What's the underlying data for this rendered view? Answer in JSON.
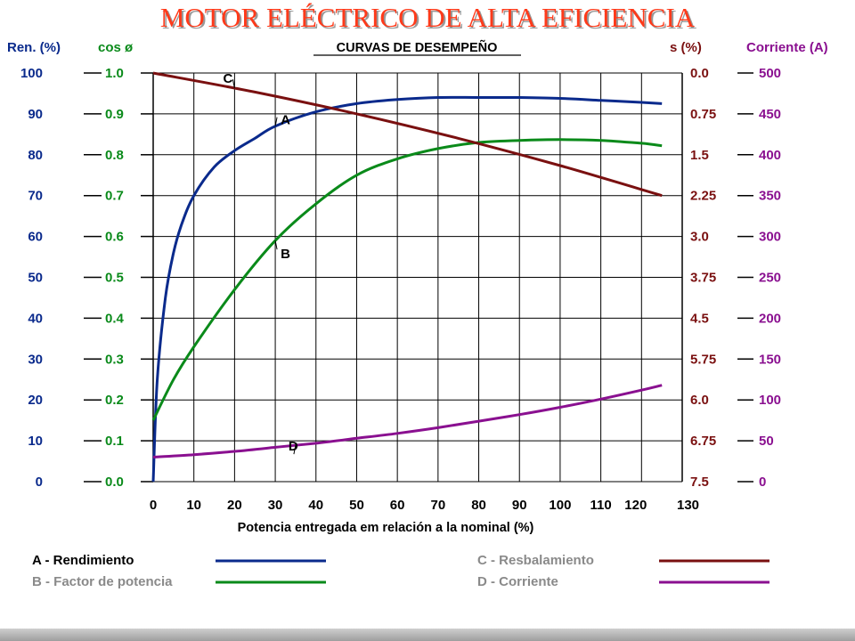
{
  "title": "MOTOR ELÉCTRICO DE ALTA EFICIENCIA",
  "chart_data": {
    "type": "line",
    "title": "CURVAS DE DESEMPEÑO",
    "xlabel": "Potencia entregada em relación a la nominal (%)",
    "xlim": [
      0,
      130
    ],
    "x_ticks": [
      "0",
      "10",
      "20",
      "30",
      "40",
      "50",
      "60",
      "70",
      "80",
      "90",
      "100",
      "110",
      "120",
      "130"
    ],
    "grid": true,
    "axes": [
      {
        "id": "ren",
        "label": "Ren. (%)",
        "color": "#0a2a8c",
        "side": "left",
        "ticks": [
          "0",
          "10",
          "20",
          "30",
          "40",
          "50",
          "60",
          "70",
          "80",
          "90",
          "100"
        ]
      },
      {
        "id": "cos",
        "label": "cos ø",
        "color": "#0a8a1a",
        "side": "left",
        "ticks": [
          "0.0",
          "0.1",
          "0.2",
          "0.3",
          "0.4",
          "0.5",
          "0.6",
          "0.7",
          "0.8",
          "0.9",
          "1.0"
        ]
      },
      {
        "id": "slip",
        "label": "s (%)",
        "color": "#7a1010",
        "side": "right",
        "ticks": [
          "7.5",
          "6.75",
          "6.0",
          "5.75",
          "4.5",
          "3.75",
          "3.0",
          "2.25",
          "1.5",
          "0.75",
          "0.0"
        ]
      },
      {
        "id": "amp",
        "label": "Corriente (A)",
        "color": "#8a1090",
        "side": "right",
        "ticks": [
          "0",
          "50",
          "100",
          "150",
          "200",
          "250",
          "300",
          "350",
          "400",
          "450",
          "500"
        ]
      }
    ],
    "series": [
      {
        "id": "A",
        "name": "A - Rendimiento",
        "letter": "A",
        "axis": "ren",
        "color": "#0a2a8c",
        "range": [
          0,
          100
        ],
        "x": [
          0,
          1,
          3,
          5,
          7,
          10,
          15,
          20,
          25,
          30,
          40,
          50,
          60,
          70,
          80,
          90,
          100,
          110,
          120,
          125
        ],
        "y": [
          0,
          25,
          45,
          56,
          63,
          70,
          77,
          81,
          84,
          87,
          90.5,
          92.5,
          93.5,
          94,
          94,
          94,
          93.8,
          93.3,
          92.8,
          92.5
        ]
      },
      {
        "id": "B",
        "name": "B - Factor de potencia",
        "letter": "B",
        "axis": "cos",
        "color": "#0a8a1a",
        "range": [
          0,
          1
        ],
        "x": [
          0,
          5,
          10,
          20,
          30,
          40,
          50,
          60,
          70,
          80,
          90,
          100,
          110,
          120,
          125
        ],
        "y": [
          0.15,
          0.25,
          0.33,
          0.47,
          0.59,
          0.68,
          0.75,
          0.79,
          0.815,
          0.83,
          0.835,
          0.837,
          0.835,
          0.828,
          0.822
        ]
      },
      {
        "id": "C",
        "name": "C - Resbalamiento",
        "letter": "C",
        "axis": "slip",
        "color": "#7a1010",
        "range": [
          0,
          7.5
        ],
        "inverted": true,
        "x": [
          0,
          25,
          50,
          75,
          100,
          125
        ],
        "y": [
          0.0,
          0.35,
          0.75,
          1.2,
          1.7,
          2.25
        ]
      },
      {
        "id": "D",
        "name": "D - Corriente",
        "letter": "D",
        "axis": "amp",
        "color": "#8a1090",
        "range": [
          0,
          500
        ],
        "x": [
          0,
          10,
          20,
          30,
          40,
          50,
          60,
          70,
          80,
          90,
          100,
          110,
          120,
          125
        ],
        "y": [
          30,
          33,
          37,
          42,
          47,
          53,
          59,
          66,
          74,
          82,
          91,
          101,
          112,
          118
        ]
      }
    ],
    "annotations": [
      {
        "letter": "A",
        "x": 30
      },
      {
        "letter": "B",
        "x": 30
      },
      {
        "letter": "C",
        "x": 20
      },
      {
        "letter": "D",
        "x": 35
      }
    ]
  },
  "legend": [
    {
      "label": "A - Rendimiento",
      "color": "#0a2a8c",
      "text_color": "#000000"
    },
    {
      "label": "B - Factor de potencia",
      "color": "#0a8a1a",
      "text_color": "#8a8a8a"
    },
    {
      "label": "C - Resbalamiento",
      "color": "#7a1010",
      "text_color": "#8a8a8a"
    },
    {
      "label": "D - Corriente",
      "color": "#8a1090",
      "text_color": "#8a8a8a"
    }
  ]
}
